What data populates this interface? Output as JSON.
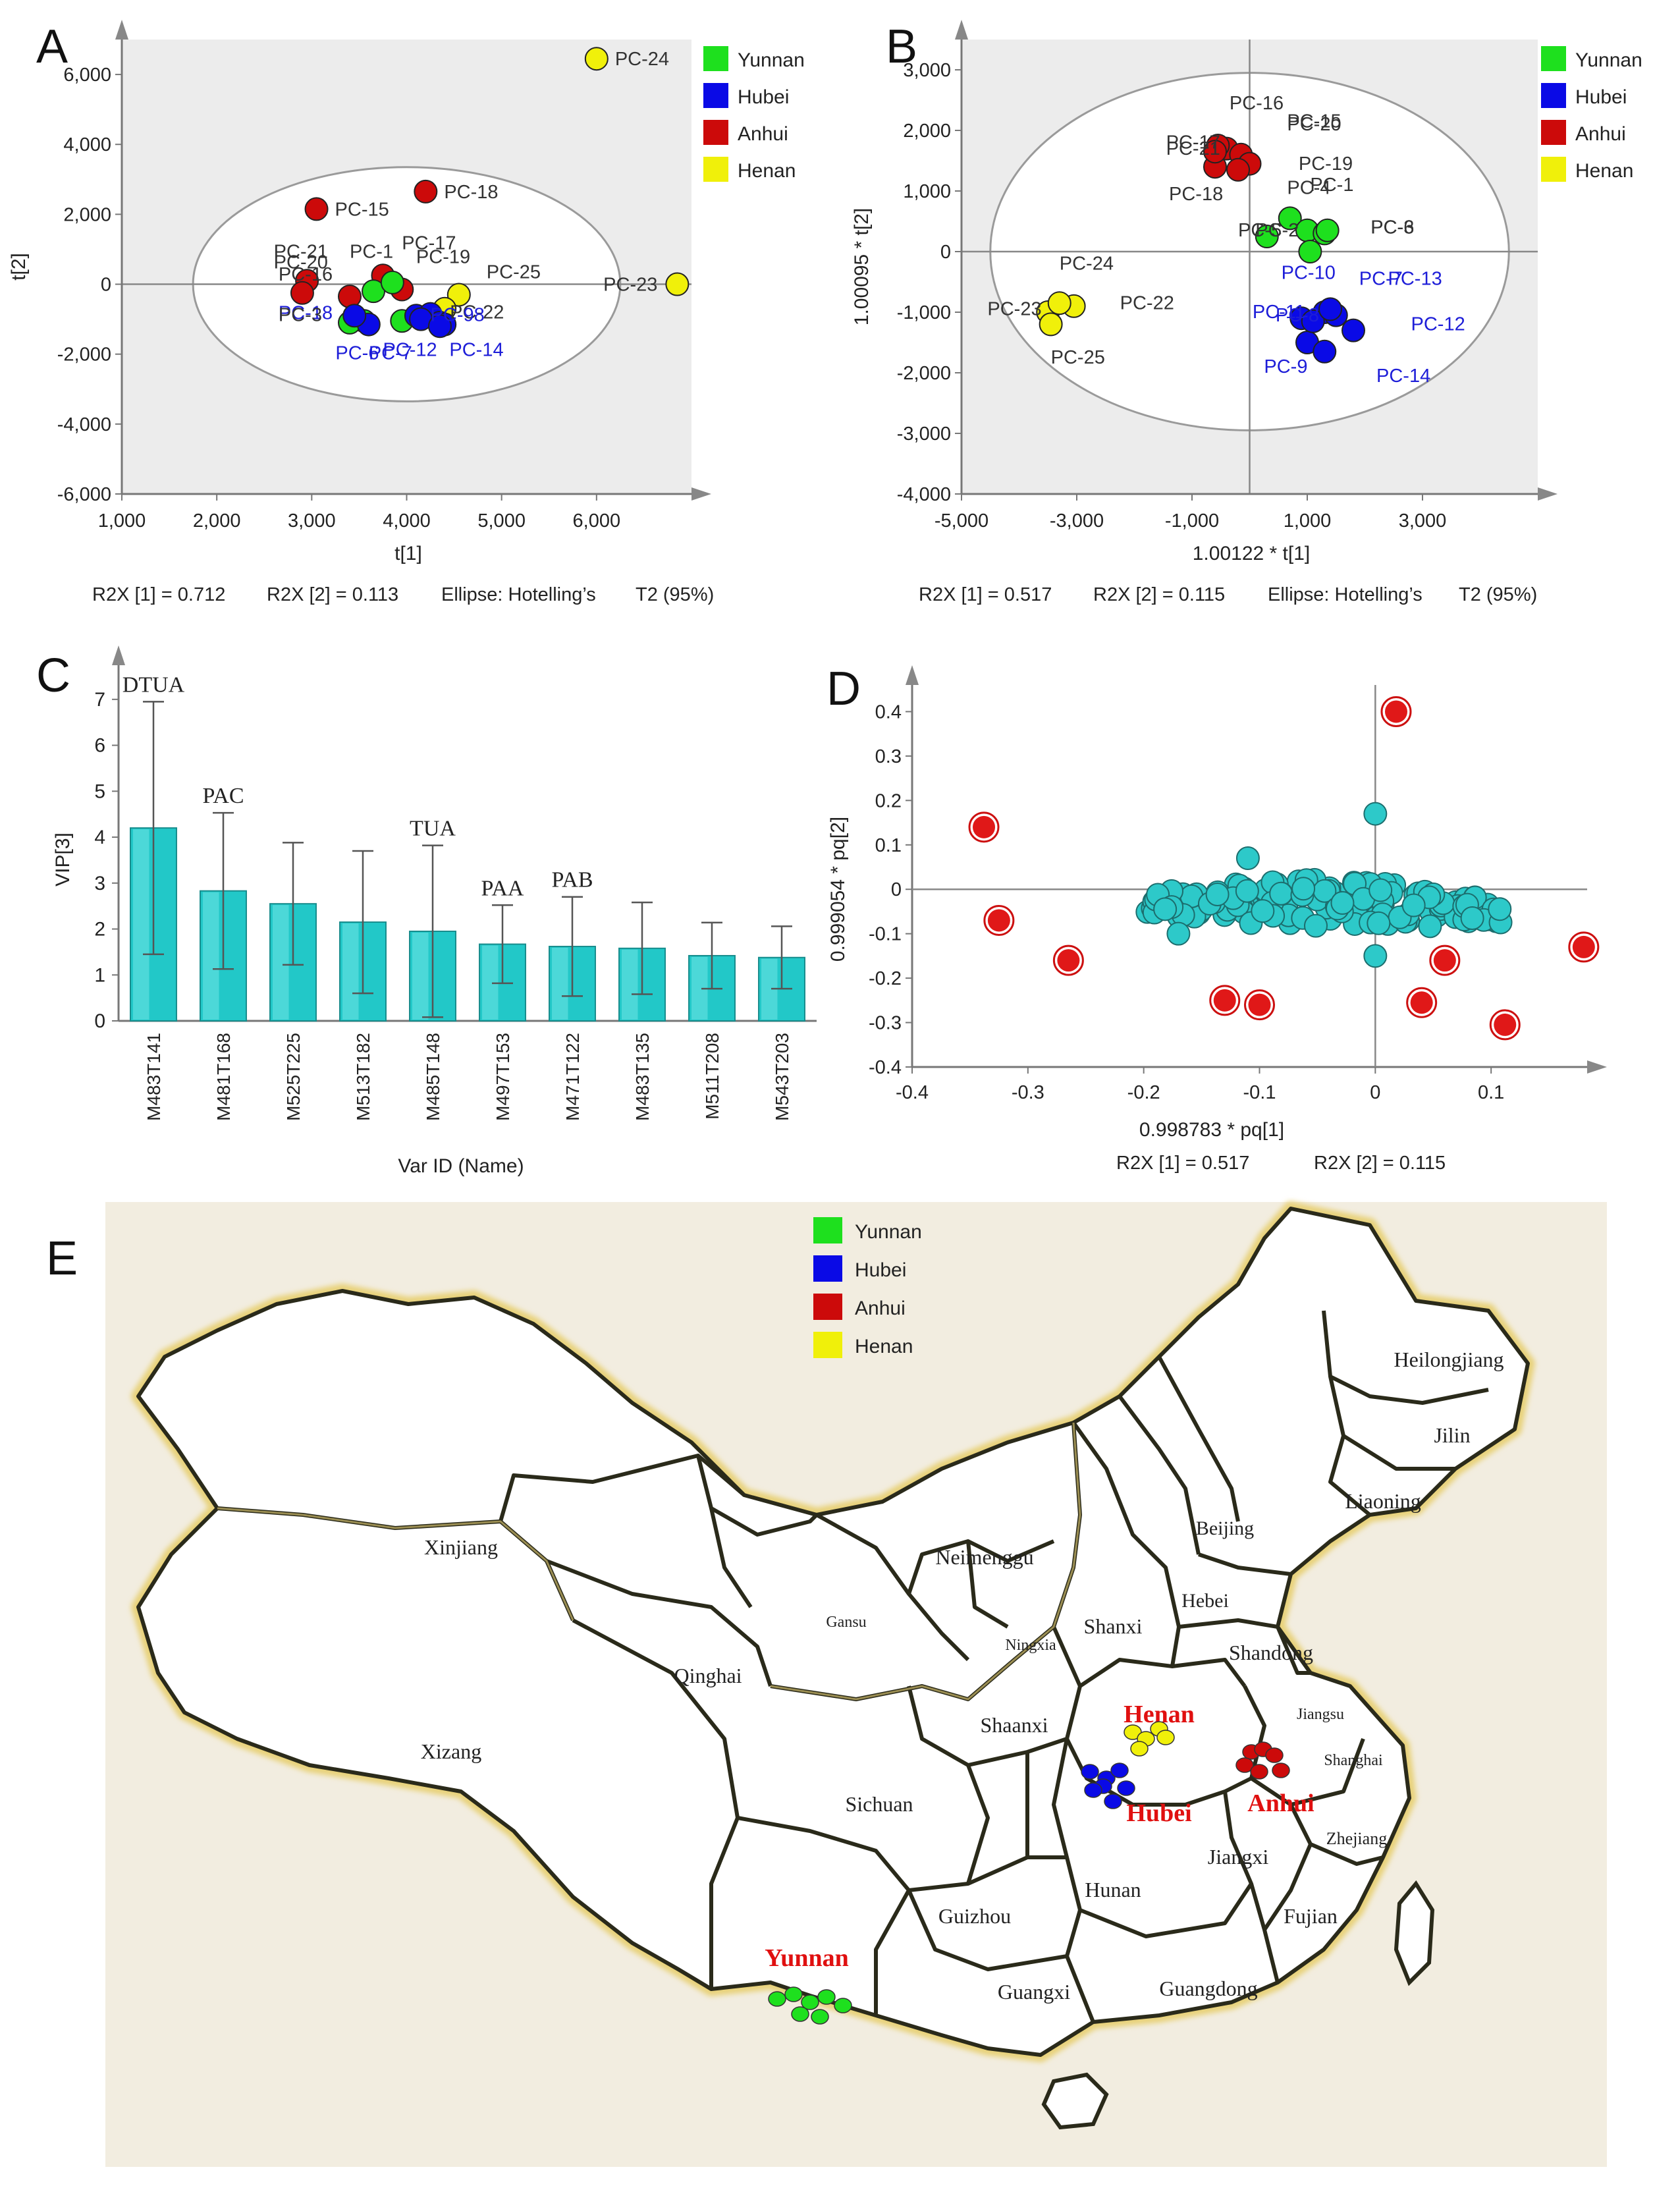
{
  "panels": {
    "A": {
      "letter": "A",
      "xlabel": "t[1]",
      "ylabel": "t[2]",
      "footer": [
        "R2X [1] = 0.712",
        "R2X [2] = 0.113",
        "Ellipse: Hotelling’s",
        "T2  (95%)"
      ]
    },
    "B": {
      "letter": "B",
      "xlabel": "1.00122 * t[1]",
      "ylabel": "1.00095 * t[2]",
      "footer": [
        "R2X [1] = 0.517",
        "R2X [2] = 0.115",
        "Ellipse: Hotelling’s",
        "T2  (95%)"
      ]
    },
    "C": {
      "letter": "C",
      "xlabel": "Var ID (Name)",
      "ylabel": "VIP[3]"
    },
    "D": {
      "letter": "D",
      "xlabel": "0.998783 * pq[1]",
      "ylabel": "0.999054 * pq[2]",
      "footer": [
        "R2X [1] = 0.517",
        "R2X [2] = 0.115"
      ]
    },
    "E": {
      "letter": "E"
    }
  },
  "legend": [
    {
      "name": "Yunnan",
      "color": "#1ee01e"
    },
    {
      "name": "Hubei",
      "color": "#0a0ae6"
    },
    {
      "name": "Anhui",
      "color": "#cc0a0a"
    },
    {
      "name": "Henan",
      "color": "#f0f00a"
    }
  ],
  "chart_data": [
    {
      "panel": "A",
      "type": "scatter",
      "xlabel": "t[1]",
      "ylabel": "t[2]",
      "xlim": [
        1000,
        7000
      ],
      "ylim": [
        -6000,
        7000
      ],
      "xticks": [
        "1,000",
        "2,000",
        "3,000",
        "4,000",
        "5,000",
        "6,000"
      ],
      "yticks": [
        "-6,000",
        "-4,000",
        "-2,000",
        "0",
        "2,000",
        "4,000",
        "6,000"
      ],
      "ellipse": {
        "cx": 4000,
        "cy": 0,
        "rx": 2250,
        "ry": 3350
      },
      "points": [
        {
          "label": "PC-24",
          "x": 6000,
          "y": 6450,
          "group": "Henan",
          "labelText": "PC-24"
        },
        {
          "label": "PC-23",
          "x": 6850,
          "y": 0,
          "group": "Henan",
          "labelText": "PC-23",
          "labelSide": "left"
        },
        {
          "label": "PC-18",
          "x": 4200,
          "y": 2650,
          "group": "Anhui",
          "labelText": "PC-18"
        },
        {
          "label": "PC-15",
          "x": 3050,
          "y": 2150,
          "group": "Anhui",
          "labelText": "PC-15"
        },
        {
          "label": "PC-25",
          "x": 4550,
          "y": -300,
          "group": "Henan",
          "labelText": "PC-25",
          "labelDx": 14,
          "labelDy": -35
        },
        {
          "label": "PC-22",
          "x": 4400,
          "y": -700,
          "group": "Henan",
          "labelText": "PC-22",
          "labelDx": -20,
          "labelDy": 5
        },
        {
          "label": "PC-21",
          "x": 2950,
          "y": 100,
          "group": "Anhui"
        },
        {
          "label": "PC-20",
          "x": 2900,
          "y": -250,
          "group": "Anhui"
        },
        {
          "label": "PC-16",
          "x": 3400,
          "y": -350,
          "group": "Anhui"
        },
        {
          "label": "PC-17",
          "x": 3750,
          "y": 250,
          "group": "Anhui"
        },
        {
          "label": "PC-19",
          "x": 3950,
          "y": -150,
          "group": "Anhui"
        },
        {
          "label": "PC-1",
          "x": 3650,
          "y": -200,
          "group": "Yunnan"
        },
        {
          "label": "PC-2",
          "x": 3850,
          "y": 50,
          "group": "Yunnan"
        },
        {
          "label": "PC-3",
          "x": 3450,
          "y": -950,
          "group": "Yunnan"
        },
        {
          "label": "PC-4",
          "x": 3550,
          "y": -1050,
          "group": "Yunnan"
        },
        {
          "label": "PC-5",
          "x": 3400,
          "y": -1100,
          "group": "Yunnan"
        },
        {
          "label": "PC-6",
          "x": 3950,
          "y": -1050,
          "group": "Yunnan"
        },
        {
          "label": "PC-7",
          "x": 4100,
          "y": -900,
          "group": "Hubei"
        },
        {
          "label": "PC-8",
          "x": 4250,
          "y": -850,
          "group": "Hubei"
        },
        {
          "label": "PC-9",
          "x": 4350,
          "y": -1100,
          "group": "Hubei"
        },
        {
          "label": "PC-10",
          "x": 3600,
          "y": -1150,
          "group": "Hubei"
        },
        {
          "label": "PC-11",
          "x": 3450,
          "y": -900,
          "group": "Hubei"
        },
        {
          "label": "PC-12",
          "x": 4150,
          "y": -1000,
          "group": "Hubei"
        },
        {
          "label": "PC-13",
          "x": 4400,
          "y": -1150,
          "group": "Hubei"
        },
        {
          "label": "PC-14",
          "x": 4350,
          "y": -1200,
          "group": "Hubei"
        }
      ],
      "overlapLabels": [
        {
          "text": "PC-21",
          "x": 2600,
          "y": 750,
          "color": "#333"
        },
        {
          "text": "PC-20",
          "x": 2600,
          "y": 450,
          "color": "#333"
        },
        {
          "text": "PC-16",
          "x": 2650,
          "y": 100,
          "color": "#333"
        },
        {
          "text": "PC-1",
          "x": 3400,
          "y": 750,
          "color": "#333"
        },
        {
          "text": "PC-17",
          "x": 3950,
          "y": 1000,
          "color": "#333"
        },
        {
          "text": "PC-19",
          "x": 4100,
          "y": 600,
          "color": "#333"
        },
        {
          "text": "PC-18",
          "x": 2650,
          "y": -1000,
          "color": "#1d1dd8"
        },
        {
          "text": "PC-3",
          "x": 2650,
          "y": -1050,
          "color": "#333"
        },
        {
          "text": "PC-6",
          "x": 3250,
          "y": -2150,
          "color": "#1d1dd8"
        },
        {
          "text": "PC-7",
          "x": 3600,
          "y": -2150,
          "color": "#1d1dd8"
        },
        {
          "text": "PC-12",
          "x": 3750,
          "y": -2050,
          "color": "#1d1dd8"
        },
        {
          "text": "PC-14",
          "x": 4450,
          "y": -2050,
          "color": "#1d1dd8"
        },
        {
          "text": "PC-98",
          "x": 4250,
          "y": -1050,
          "color": "#1d1dd8"
        }
      ]
    },
    {
      "panel": "B",
      "type": "scatter",
      "xlabel": "1.00122 * t[1]",
      "ylabel": "1.00095 * t[2]",
      "xlim": [
        -5000,
        5000
      ],
      "ylim": [
        -4000,
        3500
      ],
      "xticks": [
        "-5,000",
        "-3,000",
        "-1,000",
        "1,000",
        "3,000"
      ],
      "yticks": [
        "-4,000",
        "-3,000",
        "-2,000",
        "-1,000",
        "0",
        "1,000",
        "2,000",
        "3,000"
      ],
      "ellipse": {
        "cx": 0,
        "cy": 0,
        "rx": 4500,
        "ry": 2950
      },
      "points": [
        {
          "label": "PC-16",
          "x": -400,
          "y": 1700,
          "group": "Anhui"
        },
        {
          "label": "PC-17",
          "x": -550,
          "y": 1750,
          "group": "Anhui"
        },
        {
          "label": "PC-21",
          "x": -600,
          "y": 1400,
          "group": "Anhui"
        },
        {
          "label": "PC-20",
          "x": -150,
          "y": 1600,
          "group": "Anhui"
        },
        {
          "label": "PC-15",
          "x": 0,
          "y": 1450,
          "group": "Anhui"
        },
        {
          "label": "PC-1",
          "x": 700,
          "y": 550,
          "group": "Yunnan"
        },
        {
          "label": "PC-2",
          "x": 1000,
          "y": 350,
          "group": "Yunnan"
        },
        {
          "label": "PC-3",
          "x": 1300,
          "y": 300,
          "group": "Yunnan"
        },
        {
          "label": "PC-4",
          "x": 300,
          "y": 250,
          "group": "Yunnan"
        },
        {
          "label": "PC-5",
          "x": 1050,
          "y": 0,
          "group": "Yunnan"
        },
        {
          "label": "PC-6",
          "x": 1350,
          "y": 350,
          "group": "Yunnan"
        },
        {
          "label": "PC-7",
          "x": 1300,
          "y": -1000,
          "group": "Hubei"
        },
        {
          "label": "PC-8",
          "x": 900,
          "y": -1100,
          "group": "Hubei"
        },
        {
          "label": "PC-9",
          "x": 1000,
          "y": -1500,
          "group": "Hubei"
        },
        {
          "label": "PC-10",
          "x": 1500,
          "y": -1050,
          "group": "Hubei"
        },
        {
          "label": "PC-11",
          "x": 1100,
          "y": -1150,
          "group": "Hubei"
        },
        {
          "label": "PC-12",
          "x": 1800,
          "y": -1300,
          "group": "Hubei"
        },
        {
          "label": "PC-13",
          "x": 1400,
          "y": -950,
          "group": "Hubei"
        },
        {
          "label": "PC-14",
          "x": 1300,
          "y": -1650,
          "group": "Hubei"
        },
        {
          "label": "PC-22",
          "x": -3050,
          "y": -900,
          "group": "Henan"
        },
        {
          "label": "PC-23",
          "x": -3500,
          "y": -1000,
          "group": "Henan"
        },
        {
          "label": "PC-24",
          "x": -3300,
          "y": -850,
          "group": "Henan"
        },
        {
          "label": "PC-25",
          "x": -3450,
          "y": -1200,
          "group": "Henan"
        },
        {
          "label": "PC-18",
          "x": -600,
          "y": 1650,
          "group": "Anhui"
        },
        {
          "label": "PC-19",
          "x": -200,
          "y": 1350,
          "group": "Anhui"
        }
      ],
      "overlapLabels": [
        {
          "text": "PC-16",
          "x": -350,
          "y": 2350,
          "color": "#333"
        },
        {
          "text": "PC-20",
          "x": 650,
          "y": 2000,
          "color": "#333"
        },
        {
          "text": "PC-15",
          "x": 650,
          "y": 2050,
          "color": "#333"
        },
        {
          "text": "PC-17",
          "x": -1450,
          "y": 1700,
          "color": "#333"
        },
        {
          "text": "PC-21",
          "x": -1450,
          "y": 1600,
          "color": "#333"
        },
        {
          "text": "PC-19",
          "x": 850,
          "y": 1350,
          "color": "#333"
        },
        {
          "text": "PC-4",
          "x": 650,
          "y": 950,
          "color": "#333"
        },
        {
          "text": "PC-1",
          "x": 1050,
          "y": 1000,
          "color": "#333"
        },
        {
          "text": "PC-18",
          "x": -1400,
          "y": 850,
          "color": "#333"
        },
        {
          "text": "PC-5",
          "x": -200,
          "y": 250,
          "color": "#333"
        },
        {
          "text": "PC-2",
          "x": 100,
          "y": 250,
          "color": "#333"
        },
        {
          "text": "PC-6",
          "x": 2100,
          "y": 300,
          "color": "#333"
        },
        {
          "text": "PC-3",
          "x": 2100,
          "y": 300,
          "color": "#333"
        },
        {
          "text": "PC-10",
          "x": 550,
          "y": -450,
          "color": "#1d1dd8"
        },
        {
          "text": "PC-7",
          "x": 1900,
          "y": -550,
          "color": "#1d1dd8"
        },
        {
          "text": "PC-13",
          "x": 2400,
          "y": -550,
          "color": "#1d1dd8"
        },
        {
          "text": "PC-11",
          "x": 50,
          "y": -1100,
          "color": "#1d1dd8"
        },
        {
          "text": "PC-8",
          "x": 450,
          "y": -1150,
          "color": "#1d1dd8"
        },
        {
          "text": "PC-12",
          "x": 2800,
          "y": -1300,
          "color": "#1d1dd8"
        },
        {
          "text": "PC-9",
          "x": 250,
          "y": -2000,
          "color": "#1d1dd8"
        },
        {
          "text": "PC-14",
          "x": 2200,
          "y": -2150,
          "color": "#1d1dd8"
        },
        {
          "text": "PC-24",
          "x": -3300,
          "y": -300,
          "color": "#333"
        },
        {
          "text": "PC-23",
          "x": -4550,
          "y": -1050,
          "color": "#333"
        },
        {
          "text": "PC-22",
          "x": -2250,
          "y": -950,
          "color": "#333"
        },
        {
          "text": "PC-25",
          "x": -3450,
          "y": -1850,
          "color": "#333"
        }
      ]
    },
    {
      "panel": "C",
      "type": "bar",
      "xlabel": "Var ID (Name)",
      "ylabel": "VIP[3]",
      "ylim": [
        0,
        7.6
      ],
      "yticks": [
        "0",
        "1",
        "2",
        "3",
        "4",
        "5",
        "6",
        "7"
      ],
      "categories": [
        "M483T141",
        "M481T168",
        "M525T225",
        "M513T182",
        "M485T148",
        "M497T153",
        "M471T122",
        "M483T135",
        "M511T208",
        "M543T203"
      ],
      "values": [
        4.2,
        2.83,
        2.55,
        2.15,
        1.95,
        1.67,
        1.62,
        1.58,
        1.42,
        1.38
      ],
      "errors": [
        2.75,
        1.7,
        1.33,
        1.55,
        1.87,
        0.85,
        1.08,
        1.0,
        0.72,
        0.68
      ],
      "annotations": [
        "DTUA",
        "PAC",
        "",
        "",
        "TUA",
        "PAA",
        "PAB",
        "",
        "",
        ""
      ]
    },
    {
      "panel": "D",
      "type": "scatter",
      "xlabel": "0.998783 * pq[1]",
      "ylabel": "0.999054 * pq[2]",
      "xlim": [
        -0.4,
        0.2
      ],
      "ylim": [
        -0.4,
        0.46
      ],
      "xticks": [
        "-0.4",
        "-0.3",
        "-0.2",
        "-0.1",
        "0",
        "0.1"
      ],
      "yticks": [
        "-0.4",
        "-0.3",
        "-0.2",
        "-0.1",
        "0",
        "0.1",
        "0.2",
        "0.3",
        "0.4"
      ],
      "highlight": [
        [
          0.018,
          0.4
        ],
        [
          -0.338,
          0.14
        ],
        [
          -0.325,
          -0.07
        ],
        [
          -0.265,
          -0.16
        ],
        [
          -0.13,
          -0.25
        ],
        [
          -0.1,
          -0.26
        ],
        [
          0.04,
          -0.255
        ],
        [
          0.06,
          -0.16
        ],
        [
          0.112,
          -0.305
        ],
        [
          0.18,
          -0.13
        ]
      ],
      "cluster_center": [
        -0.04,
        -0.03
      ],
      "cluster_count": 150
    }
  ],
  "map": {
    "provinces": [
      {
        "name": "Heilongjiang",
        "color": "#222"
      },
      {
        "name": "Jilin",
        "color": "#222"
      },
      {
        "name": "Liaoning",
        "color": "#222"
      },
      {
        "name": "Beijing",
        "color": "#222"
      },
      {
        "name": "Hebei",
        "color": "#222"
      },
      {
        "name": "Shandong",
        "color": "#222"
      },
      {
        "name": "Jiangsu",
        "color": "#222"
      },
      {
        "name": "Shanghai",
        "color": "#222"
      },
      {
        "name": "Zhejiang",
        "color": "#222"
      },
      {
        "name": "Fujian",
        "color": "#222"
      },
      {
        "name": "Jiangxi",
        "color": "#222"
      },
      {
        "name": "Guangdong",
        "color": "#222"
      },
      {
        "name": "Guangxi",
        "color": "#222"
      },
      {
        "name": "Guizhou",
        "color": "#222"
      },
      {
        "name": "Hunan",
        "color": "#222"
      },
      {
        "name": "Sichuan",
        "color": "#222"
      },
      {
        "name": "Shaanxi",
        "color": "#222"
      },
      {
        "name": "Shanxi",
        "color": "#222"
      },
      {
        "name": "Ningxia",
        "color": "#222"
      },
      {
        "name": "Gansu",
        "color": "#222"
      },
      {
        "name": "Neimenggu",
        "color": "#222"
      },
      {
        "name": "Qinghai",
        "color": "#222"
      },
      {
        "name": "Xizang",
        "color": "#222"
      },
      {
        "name": "Xinjiang",
        "color": "#222"
      }
    ],
    "highlighted": [
      {
        "name": "Henan",
        "color": "#e01010"
      },
      {
        "name": "Hubei",
        "color": "#e01010"
      },
      {
        "name": "Anhui",
        "color": "#e01010"
      },
      {
        "name": "Yunnan",
        "color": "#e01010"
      }
    ]
  }
}
